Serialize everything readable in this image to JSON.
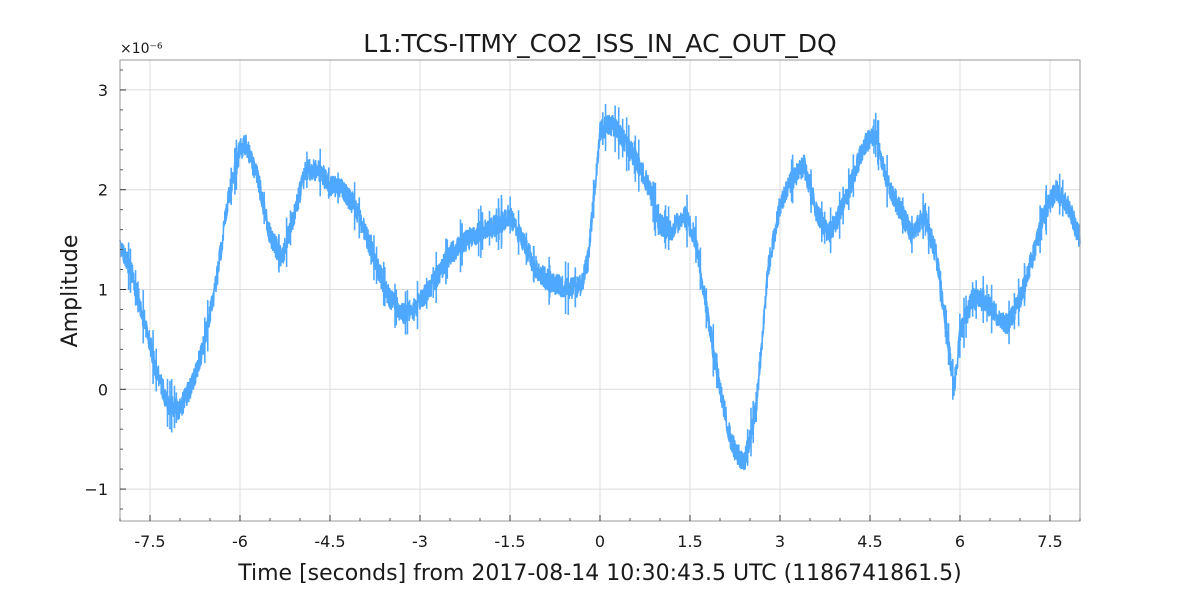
{
  "chart_data": {
    "type": "line",
    "title": "L1:TCS-ITMY_CO2_ISS_IN_AC_OUT_DQ",
    "xlabel": "Time [seconds] from 2017-08-14 10:30:43.5 UTC (1186741861.5)",
    "ylabel": "Amplitude",
    "y_multiplier": "×10⁻⁶",
    "xlim": [
      -8,
      8
    ],
    "ylim": [
      -1.32,
      3.3
    ],
    "x_ticks": [
      -7.5,
      -6,
      -4.5,
      -3,
      -1.5,
      0,
      1.5,
      3,
      4.5,
      6,
      7.5
    ],
    "x_tick_labels": [
      "-7.5",
      "-6",
      "-4.5",
      "-3",
      "-1.5",
      "0",
      "1.5",
      "3",
      "4.5",
      "6",
      "7.5"
    ],
    "y_ticks": [
      -1,
      0,
      1,
      2,
      3
    ],
    "y_tick_labels": [
      "−1",
      "0",
      "1",
      "2",
      "3"
    ],
    "grid": true,
    "noise_band": 0.22,
    "series": [
      {
        "color": "#4ea8ff",
        "x": [
          -8.0,
          -7.8,
          -7.6,
          -7.4,
          -7.2,
          -7.0,
          -6.8,
          -6.6,
          -6.4,
          -6.2,
          -6.0,
          -5.9,
          -5.7,
          -5.5,
          -5.3,
          -5.1,
          -4.9,
          -4.7,
          -4.5,
          -4.3,
          -4.1,
          -3.9,
          -3.7,
          -3.5,
          -3.3,
          -3.1,
          -2.9,
          -2.7,
          -2.5,
          -2.3,
          -2.1,
          -1.9,
          -1.7,
          -1.5,
          -1.3,
          -1.1,
          -0.9,
          -0.7,
          -0.5,
          -0.3,
          -0.2,
          0.0,
          0.2,
          0.4,
          0.6,
          0.8,
          1.0,
          1.2,
          1.4,
          1.6,
          1.8,
          2.0,
          2.2,
          2.4,
          2.6,
          2.8,
          3.0,
          3.2,
          3.4,
          3.6,
          3.8,
          4.0,
          4.2,
          4.4,
          4.6,
          4.8,
          5.0,
          5.2,
          5.4,
          5.6,
          5.8,
          5.9,
          6.0,
          6.2,
          6.4,
          6.6,
          6.8,
          7.0,
          7.2,
          7.4,
          7.6,
          7.8,
          8.0
        ],
        "y": [
          1.45,
          1.15,
          0.7,
          0.2,
          -0.15,
          -0.2,
          0.05,
          0.45,
          1.05,
          1.9,
          2.4,
          2.45,
          2.1,
          1.55,
          1.3,
          1.75,
          2.2,
          2.2,
          2.05,
          2.0,
          1.85,
          1.55,
          1.2,
          0.9,
          0.75,
          0.8,
          0.95,
          1.15,
          1.35,
          1.45,
          1.55,
          1.6,
          1.65,
          1.75,
          1.5,
          1.25,
          1.1,
          1.05,
          1.0,
          1.05,
          1.3,
          2.6,
          2.65,
          2.5,
          2.3,
          2.05,
          1.65,
          1.6,
          1.75,
          1.5,
          0.7,
          0.0,
          -0.55,
          -0.75,
          -0.2,
          1.2,
          1.85,
          2.1,
          2.25,
          1.8,
          1.55,
          1.75,
          2.1,
          2.45,
          2.55,
          2.05,
          1.8,
          1.55,
          1.75,
          1.35,
          0.5,
          0.0,
          0.55,
          0.9,
          0.9,
          0.75,
          0.65,
          0.9,
          1.3,
          1.75,
          2.0,
          1.85,
          1.5
        ]
      }
    ]
  }
}
